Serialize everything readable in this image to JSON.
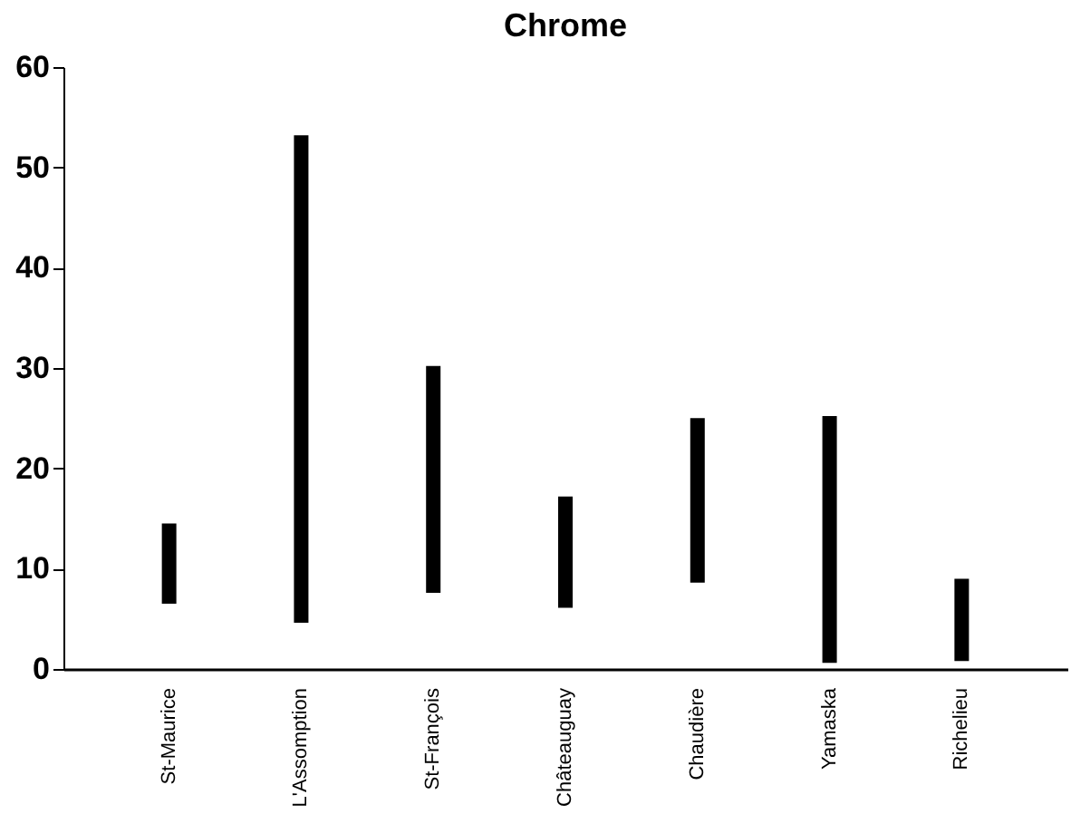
{
  "chart_data": {
    "type": "bar",
    "title": "Chrome",
    "categories": [
      "St-Maurice",
      "L'Assomption",
      "St-François",
      "Châteauguay",
      "Chaudière",
      "Yamaska",
      "Richelieu"
    ],
    "base": [
      6.5,
      4.6,
      7.6,
      6.1,
      8.6,
      0.6,
      0.8
    ],
    "values": [
      8.0,
      48.6,
      22.6,
      11.1,
      16.4,
      24.6,
      8.2
    ],
    "color": "#000000",
    "ylim": [
      0,
      60
    ],
    "yticks": [
      0,
      10,
      20,
      30,
      40,
      50,
      60
    ],
    "grid": false
  }
}
